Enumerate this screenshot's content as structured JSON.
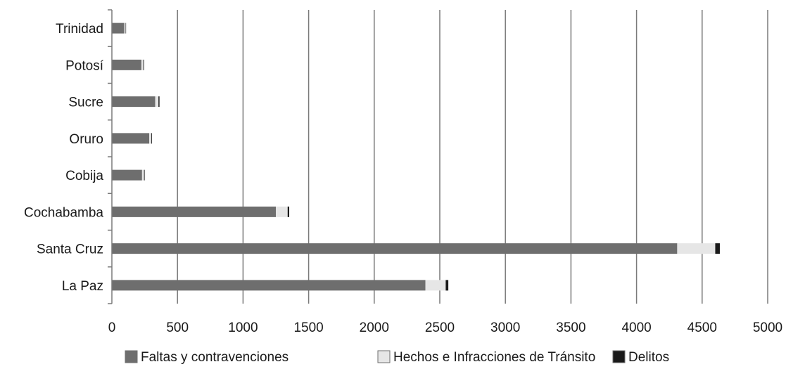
{
  "chart_data": {
    "type": "bar",
    "orientation": "horizontal",
    "stacked": true,
    "categories": [
      "Trinidad",
      "Potosí",
      "Sucre",
      "Oruro",
      "Cobija",
      "Cochabamba",
      "Santa Cruz",
      "La Paz"
    ],
    "series": [
      {
        "name": "Faltas y contravenciones",
        "color": "#6e6e6e",
        "values": [
          95,
          225,
          330,
          285,
          230,
          1250,
          4310,
          2390
        ]
      },
      {
        "name": "Hechos e Infracciones de Tránsito",
        "color": "#e6e6e6",
        "values": [
          10,
          15,
          25,
          15,
          15,
          90,
          290,
          155
        ]
      },
      {
        "name": "Delitos",
        "color": "#1a1a1a",
        "values": [
          3,
          5,
          8,
          5,
          5,
          12,
          35,
          20
        ]
      }
    ],
    "xlim": [
      0,
      5000
    ],
    "xticks": [
      "0",
      "500",
      "1000",
      "1500",
      "2000",
      "2500",
      "3000",
      "3500",
      "4000",
      "4500",
      "5000"
    ],
    "grid": "vertical",
    "legend": "bottom",
    "title": "",
    "xlabel": "",
    "ylabel": ""
  }
}
